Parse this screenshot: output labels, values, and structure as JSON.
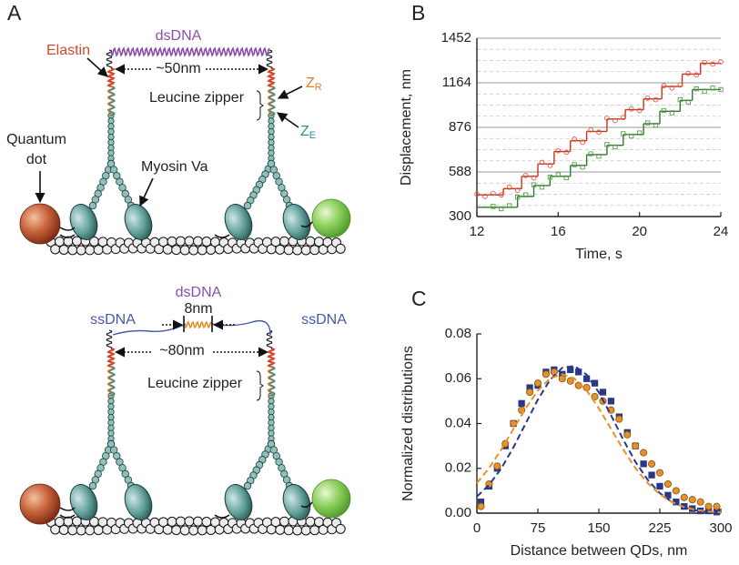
{
  "panel_labels": [
    "A",
    "B",
    "C"
  ],
  "diagram": {
    "top": {
      "dsdna": "dsDNA",
      "elastin": "Elastin",
      "distance": "~50nm",
      "zr": "Z",
      "zr_sub": "R",
      "ze": "Z",
      "ze_sub": "E",
      "leucine_zipper": "Leucine zipper",
      "quantum_dot": [
        "Quantum",
        "dot"
      ],
      "myosin": "Myosin Va"
    },
    "bottom": {
      "dsdna": "dsDNA",
      "length": "8nm",
      "ssdna": [
        "ssDNA",
        "ssDNA"
      ],
      "distance": "~80nm",
      "leucine_zipper": "Leucine zipper"
    }
  },
  "chart_data": [
    {
      "type": "line",
      "xlabel": "Time, s",
      "ylabel": "Displacement, nm",
      "xlim": [
        12,
        24
      ],
      "ylim": [
        300,
        1452
      ],
      "xticks": [
        12,
        16,
        20,
        24
      ],
      "yticks": [
        300,
        588,
        876,
        1164,
        1452
      ],
      "minor_yticks": [
        372,
        444,
        516,
        660,
        732,
        804,
        948,
        1020,
        1092,
        1236,
        1308,
        1380
      ],
      "grid": true,
      "series": [
        {
          "color": "#c8341f",
          "style": "step",
          "x": [
            12,
            13.3,
            14.2,
            15.0,
            15.8,
            16.6,
            17.4,
            18.4,
            19.3,
            20.2,
            21.1,
            22.1,
            23.0
          ],
          "values": [
            440,
            480,
            560,
            640,
            720,
            790,
            850,
            930,
            990,
            1060,
            1140,
            1220,
            1290
          ]
        },
        {
          "color": "#2f7a2a",
          "style": "step",
          "x": [
            12,
            14.0,
            14.8,
            15.6,
            16.6,
            17.4,
            18.4,
            19.2,
            20.2,
            21.0,
            22.0,
            22.6
          ],
          "values": [
            360,
            430,
            500,
            560,
            630,
            700,
            760,
            830,
            900,
            980,
            1050,
            1120
          ]
        },
        {
          "color": "#e0553e",
          "style": "markers",
          "marker": "circle",
          "x": [
            12.0,
            12.4,
            12.8,
            13.2,
            13.6,
            14.0,
            14.4,
            14.8,
            15.2,
            15.6,
            16.0,
            16.4,
            16.8,
            17.2,
            17.6,
            18.0,
            18.4,
            18.8,
            19.2,
            19.6,
            20.0,
            20.4,
            20.8,
            21.2,
            21.6,
            22.0,
            22.4,
            22.8,
            23.2,
            23.6,
            24.0
          ],
          "values": [
            445,
            430,
            450,
            440,
            490,
            470,
            565,
            550,
            650,
            630,
            725,
            715,
            800,
            780,
            860,
            845,
            935,
            920,
            940,
            995,
            985,
            1065,
            1055,
            1145,
            1130,
            1150,
            1225,
            1215,
            1295,
            1285,
            1300
          ]
        },
        {
          "color": "#5a9d4c",
          "style": "markers",
          "marker": "square",
          "x": [
            12.8,
            13.2,
            13.6,
            14.0,
            14.4,
            14.8,
            15.2,
            15.6,
            16.0,
            16.4,
            16.8,
            17.2,
            17.6,
            18.0,
            18.4,
            18.8,
            19.2,
            19.6,
            20.0,
            20.4,
            20.8,
            21.2,
            21.6,
            22.0,
            22.4,
            22.8,
            23.2,
            23.6,
            24.0
          ],
          "values": [
            365,
            350,
            370,
            425,
            440,
            505,
            490,
            555,
            570,
            550,
            635,
            620,
            705,
            690,
            765,
            750,
            835,
            820,
            840,
            905,
            890,
            985,
            970,
            1055,
            1040,
            1125,
            1110,
            1130,
            1120
          ]
        }
      ]
    },
    {
      "type": "scatter",
      "xlabel": "Distance between QDs, nm",
      "ylabel": "Normalized distributions",
      "xlim": [
        0,
        300
      ],
      "ylim": [
        0,
        0.08
      ],
      "xticks": [
        0,
        75,
        150,
        225,
        300
      ],
      "yticks": [
        {
          "value": 0,
          "label": "0.00"
        },
        0.02,
        0.04,
        0.06,
        0.08
      ],
      "grid": false,
      "series": [
        {
          "color": "#2b3788",
          "style": "markers",
          "marker": "square",
          "x": [
            5,
            15,
            25,
            35,
            45,
            55,
            65,
            75,
            85,
            95,
            105,
            115,
            125,
            135,
            145,
            155,
            165,
            175,
            185,
            195,
            205,
            215,
            225,
            235,
            245,
            255,
            265,
            275,
            285,
            295
          ],
          "values": [
            0.005,
            0.012,
            0.02,
            0.03,
            0.04,
            0.049,
            0.056,
            0.057,
            0.063,
            0.064,
            0.062,
            0.064,
            0.063,
            0.06,
            0.058,
            0.054,
            0.05,
            0.043,
            0.036,
            0.03,
            0.022,
            0.017,
            0.012,
            0.008,
            0.005,
            0.003,
            0.002,
            0.001,
            0.001,
            0.0005
          ]
        },
        {
          "color": "#e8912a",
          "style": "markers",
          "marker": "circle",
          "x": [
            5,
            15,
            25,
            35,
            45,
            55,
            65,
            75,
            85,
            95,
            105,
            115,
            125,
            135,
            145,
            155,
            165,
            175,
            185,
            195,
            205,
            215,
            225,
            235,
            245,
            255,
            265,
            275,
            285,
            295
          ],
          "values": [
            0.003,
            0.013,
            0.021,
            0.031,
            0.04,
            0.046,
            0.054,
            0.058,
            0.062,
            0.063,
            0.06,
            0.059,
            0.057,
            0.056,
            0.052,
            0.05,
            0.046,
            0.042,
            0.035,
            0.03,
            0.027,
            0.022,
            0.018,
            0.013,
            0.01,
            0.007,
            0.006,
            0.005,
            0.003,
            0.003
          ]
        },
        {
          "color": "#2b3788",
          "style": "dashed",
          "x": [
            0,
            15,
            30,
            45,
            60,
            75,
            90,
            105,
            120,
            135,
            150,
            165,
            180,
            195,
            210,
            225,
            240,
            255,
            270,
            285,
            300
          ],
          "values": [
            0.0074,
            0.0126,
            0.02,
            0.0294,
            0.04,
            0.0507,
            0.0595,
            0.0649,
            0.0657,
            0.0618,
            0.0539,
            0.0437,
            0.0328,
            0.0229,
            0.0149,
            0.0089,
            0.005,
            0.0026,
            0.0012,
            0.0006,
            0.0002
          ]
        },
        {
          "color": "#e8912a",
          "style": "dashed",
          "x": [
            0,
            15,
            30,
            45,
            60,
            75,
            90,
            105,
            120,
            135,
            150,
            165,
            180,
            195,
            210,
            225,
            240,
            255,
            270,
            285,
            300
          ],
          "values": [
            0.0134,
            0.0201,
            0.0284,
            0.0376,
            0.0468,
            0.0547,
            0.0601,
            0.062,
            0.0601,
            0.0547,
            0.0468,
            0.0376,
            0.0284,
            0.0201,
            0.0134,
            0.0084,
            0.0049,
            0.0027,
            0.0014,
            0.0007,
            0.0003
          ]
        }
      ]
    }
  ]
}
